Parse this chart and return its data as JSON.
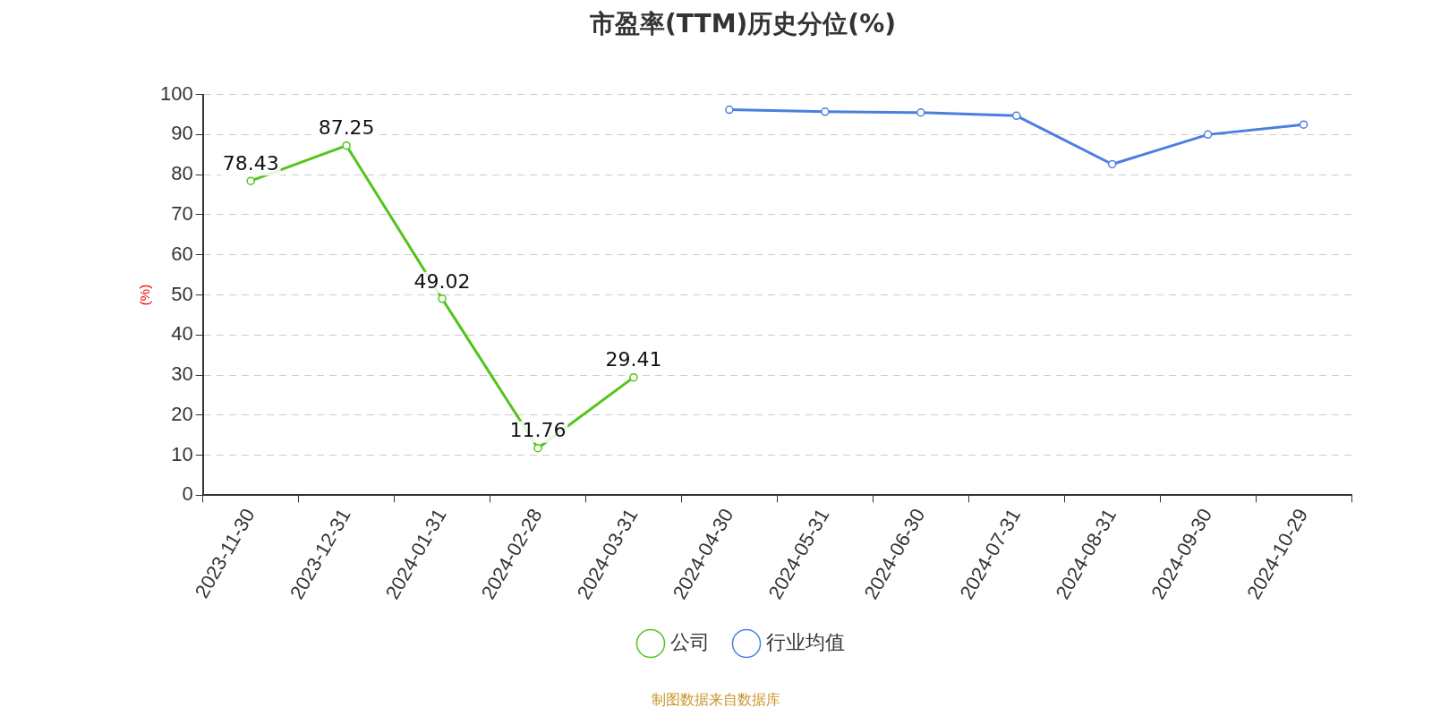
{
  "chart_data": {
    "type": "line",
    "title": "市盈率(TTM)历史分位(%)",
    "ylabel": "(%)",
    "categories": [
      "2023-11-30",
      "2023-12-31",
      "2024-01-31",
      "2024-02-28",
      "2024-03-31",
      "2024-04-30",
      "2024-05-31",
      "2024-06-30",
      "2024-07-31",
      "2024-08-31",
      "2024-09-30",
      "2024-10-29"
    ],
    "series": [
      {
        "name": "公司",
        "color": "#52c41a",
        "values": [
          78.43,
          87.25,
          49.02,
          11.76,
          29.41,
          null,
          null,
          null,
          null,
          null,
          null,
          null
        ],
        "value_labels": [
          "78.43",
          "87.25",
          "49.02",
          "11.76",
          "29.41",
          null,
          null,
          null,
          null,
          null,
          null,
          null
        ]
      },
      {
        "name": "行业均值",
        "color": "#4a7fdf",
        "values": [
          null,
          null,
          null,
          null,
          null,
          96.2,
          95.7,
          95.5,
          94.7,
          82.6,
          90,
          92.5
        ]
      }
    ],
    "ylim": [
      0,
      100
    ],
    "yticks": [
      0,
      10,
      20,
      30,
      40,
      50,
      60,
      70,
      80,
      90,
      100
    ],
    "grid": "y",
    "legend": "bottom",
    "marker": "circle",
    "line_style": "solid",
    "annotations": [
      "制图数据来自数据库"
    ]
  }
}
